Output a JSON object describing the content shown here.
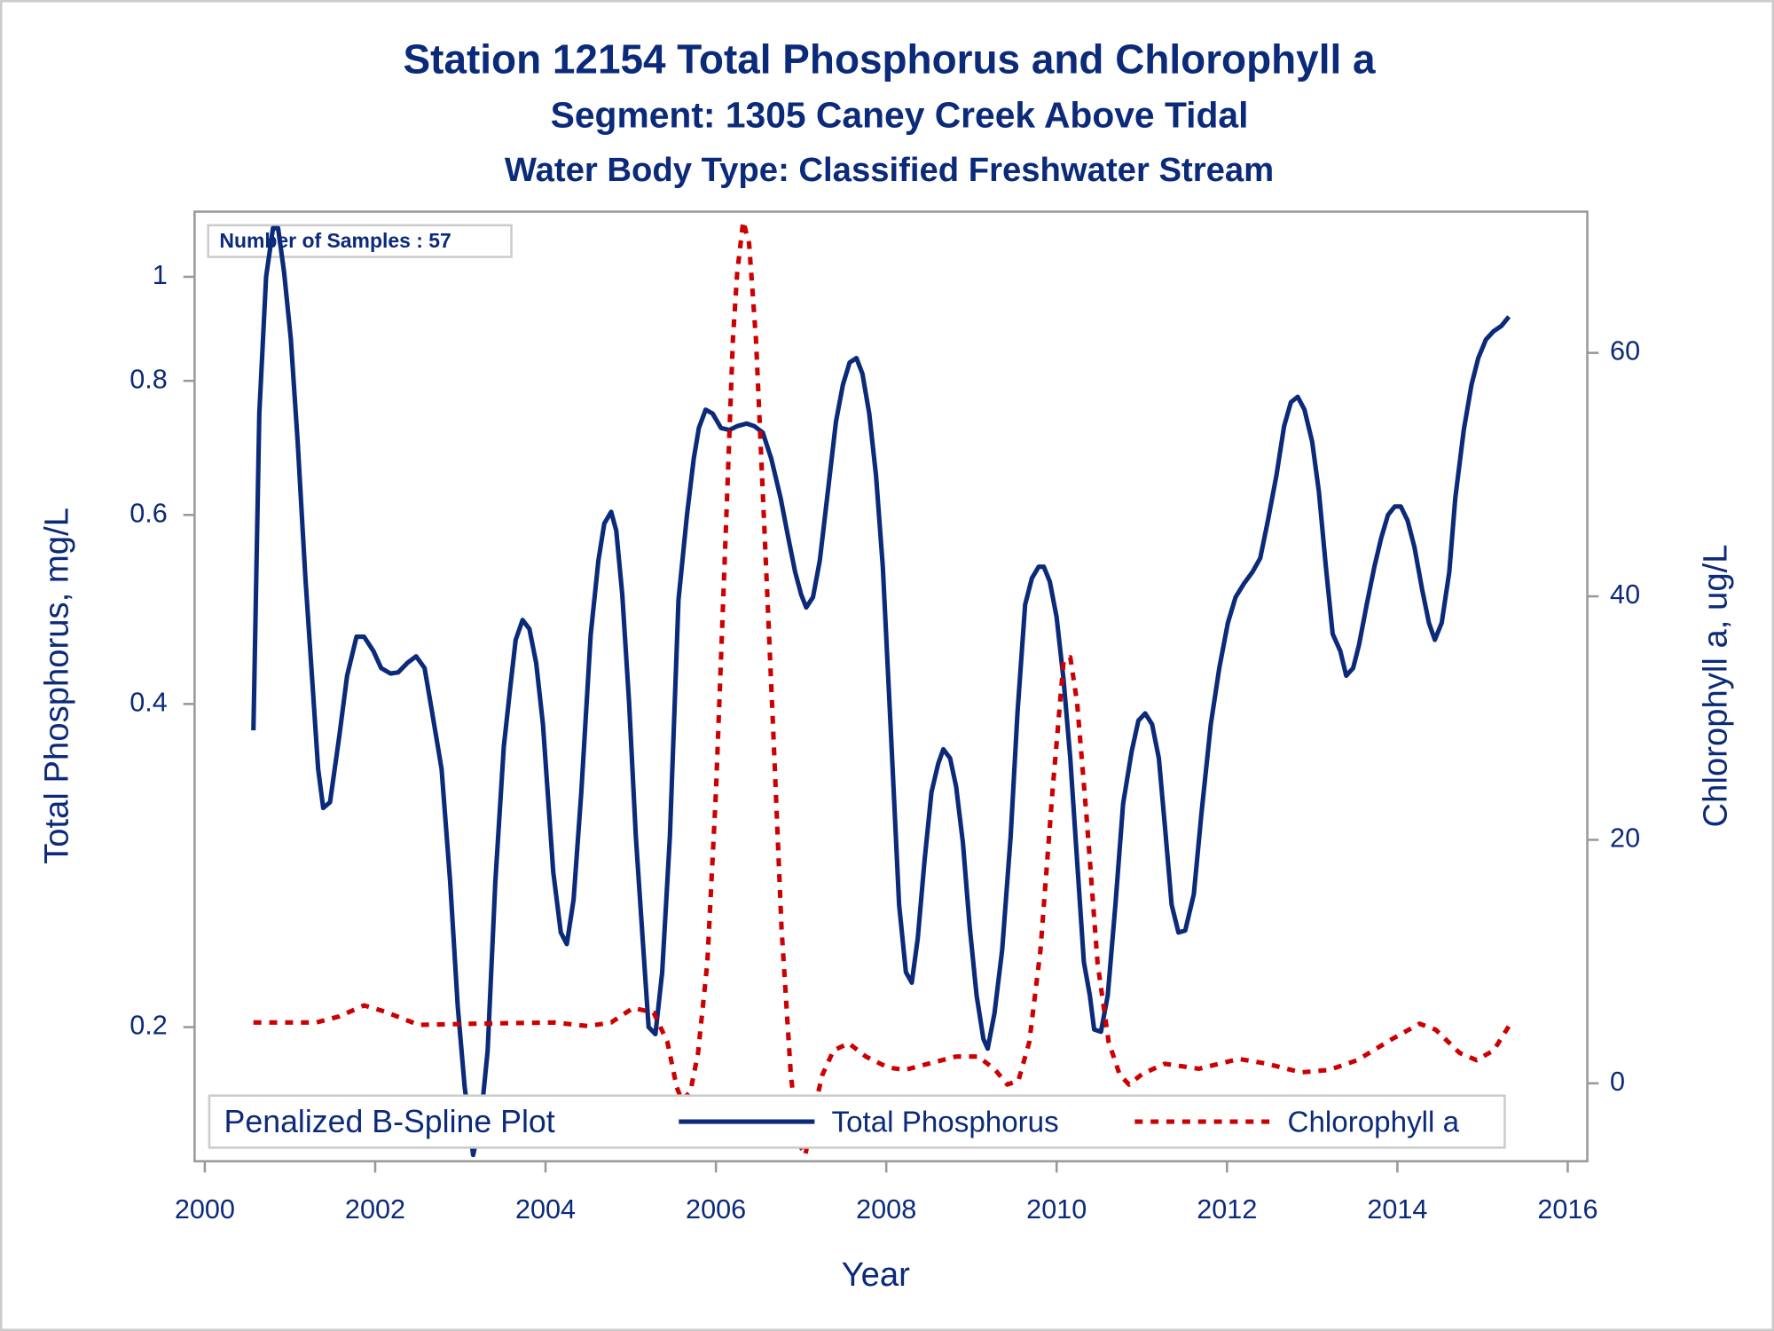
{
  "chart_data": {
    "type": "line",
    "title": "Station 12154  Total Phosphorus and Chlorophyll a",
    "subtitle": "Segment: 1305  Caney Creek Above Tidal",
    "subtitle2": "Water Body Type: Classified Freshwater Stream",
    "annotation": "Number of Samples : 57",
    "legend_title": "Penalized B-Spline Plot",
    "xlabel": "Year",
    "ylabel": "Total Phosphorus, mg/L",
    "y2label": "Chlorophyll a, ug/L",
    "xlim": [
      1999.88,
      2016.23
    ],
    "xticks": [
      2000,
      2002,
      2004,
      2006,
      2008,
      2010,
      2012,
      2014,
      2016
    ],
    "ylim": [
      0.15,
      1.15
    ],
    "yscale": "log",
    "yticks": [
      0.2,
      0.4,
      0.6,
      0.8,
      1
    ],
    "y2lim": [
      -6.4,
      71.6
    ],
    "y2ticks": [
      0,
      20,
      40,
      60
    ],
    "legend": "bottom",
    "series": [
      {
        "name": "Total Phosphorus",
        "color": "#0b2a7a",
        "style": "solid",
        "axis": "y",
        "x": [
          2000.57,
          2000.64,
          2000.72,
          2000.8,
          2000.86,
          2000.93,
          2001.01,
          2001.09,
          2001.18,
          2001.26,
          2001.33,
          2001.39,
          2001.47,
          2001.58,
          2001.67,
          2001.78,
          2001.87,
          2001.98,
          2002.07,
          2002.18,
          2002.27,
          2002.38,
          2002.48,
          2002.58,
          2002.67,
          2002.78,
          2002.88,
          2002.97,
          2003.05,
          2003.15,
          2003.24,
          2003.32,
          2003.41,
          2003.51,
          2003.59,
          2003.65,
          2003.73,
          2003.81,
          2003.89,
          2003.97,
          2004.09,
          2004.18,
          2004.25,
          2004.33,
          2004.42,
          2004.53,
          2004.62,
          2004.69,
          2004.77,
          2004.83,
          2004.9,
          2004.98,
          2005.06,
          2005.14,
          2005.21,
          2005.29,
          2005.37,
          2005.46,
          2005.56,
          2005.66,
          2005.74,
          2005.8,
          2005.88,
          2005.96,
          2006.06,
          2006.16,
          2006.25,
          2006.36,
          2006.45,
          2006.55,
          2006.65,
          2006.76,
          2006.85,
          2006.93,
          2007.0,
          2007.06,
          2007.14,
          2007.22,
          2007.32,
          2007.41,
          2007.49,
          2007.57,
          2007.65,
          2007.72,
          2007.8,
          2007.88,
          2007.96,
          2008.05,
          2008.15,
          2008.23,
          2008.3,
          2008.37,
          2008.45,
          2008.53,
          2008.61,
          2008.67,
          2008.75,
          2008.82,
          2008.9,
          2008.98,
          2009.06,
          2009.14,
          2009.19,
          2009.27,
          2009.36,
          2009.46,
          2009.54,
          2009.63,
          2009.71,
          2009.79,
          2009.85,
          2009.92,
          2010.0,
          2010.08,
          2010.16,
          2010.24,
          2010.32,
          2010.39,
          2010.44,
          2010.52,
          2010.6,
          2010.69,
          2010.78,
          2010.88,
          2010.96,
          2011.04,
          2011.12,
          2011.2,
          2011.27,
          2011.35,
          2011.43,
          2011.51,
          2011.61,
          2011.7,
          2011.81,
          2011.91,
          2012.01,
          2012.1,
          2012.2,
          2012.3,
          2012.39,
          2012.48,
          2012.58,
          2012.67,
          2012.75,
          2012.83,
          2012.91,
          2013.0,
          2013.08,
          2013.16,
          2013.24,
          2013.33,
          2013.4,
          2013.48,
          2013.55,
          2013.64,
          2013.73,
          2013.81,
          2013.89,
          2013.97,
          2014.04,
          2014.12,
          2014.2,
          2014.29,
          2014.37,
          2014.44,
          2014.52,
          2014.61,
          2014.68,
          2014.78,
          2014.87,
          2014.95,
          2015.04,
          2015.13,
          2015.22,
          2015.31
        ],
        "values": [
          0.378,
          0.746,
          1.0,
          1.11,
          1.11,
          1.01,
          0.874,
          0.702,
          0.525,
          0.422,
          0.348,
          0.32,
          0.324,
          0.374,
          0.425,
          0.462,
          0.462,
          0.448,
          0.432,
          0.427,
          0.428,
          0.437,
          0.443,
          0.432,
          0.392,
          0.348,
          0.273,
          0.209,
          0.176,
          0.152,
          0.164,
          0.19,
          0.273,
          0.365,
          0.417,
          0.459,
          0.479,
          0.47,
          0.437,
          0.383,
          0.279,
          0.245,
          0.239,
          0.263,
          0.331,
          0.464,
          0.544,
          0.589,
          0.604,
          0.58,
          0.506,
          0.402,
          0.301,
          0.242,
          0.2,
          0.197,
          0.225,
          0.301,
          0.5,
          0.6,
          0.677,
          0.723,
          0.752,
          0.746,
          0.723,
          0.72,
          0.726,
          0.73,
          0.726,
          0.716,
          0.677,
          0.622,
          0.571,
          0.531,
          0.506,
          0.492,
          0.503,
          0.544,
          0.637,
          0.733,
          0.793,
          0.832,
          0.84,
          0.812,
          0.746,
          0.653,
          0.537,
          0.383,
          0.26,
          0.225,
          0.22,
          0.242,
          0.286,
          0.331,
          0.352,
          0.363,
          0.356,
          0.335,
          0.297,
          0.248,
          0.214,
          0.195,
          0.191,
          0.206,
          0.236,
          0.301,
          0.392,
          0.495,
          0.524,
          0.537,
          0.537,
          0.52,
          0.482,
          0.422,
          0.356,
          0.286,
          0.23,
          0.214,
          0.199,
          0.198,
          0.214,
          0.26,
          0.323,
          0.361,
          0.386,
          0.392,
          0.383,
          0.356,
          0.308,
          0.26,
          0.245,
          0.246,
          0.266,
          0.316,
          0.383,
          0.432,
          0.476,
          0.503,
          0.518,
          0.531,
          0.547,
          0.593,
          0.653,
          0.726,
          0.764,
          0.773,
          0.752,
          0.702,
          0.63,
          0.537,
          0.465,
          0.448,
          0.425,
          0.432,
          0.454,
          0.495,
          0.537,
          0.571,
          0.6,
          0.611,
          0.611,
          0.593,
          0.56,
          0.512,
          0.476,
          0.459,
          0.476,
          0.531,
          0.622,
          0.72,
          0.793,
          0.84,
          0.874,
          0.89,
          0.9,
          0.918
        ]
      },
      {
        "name": "Chlorophyll a",
        "color": "#cc0000",
        "style": "dashed",
        "axis": "y2",
        "x": [
          2000.57,
          2001.31,
          2001.58,
          2001.87,
          2002.11,
          2002.51,
          2003.17,
          2004.1,
          2004.5,
          2004.77,
          2005.03,
          2005.27,
          2005.43,
          2005.54,
          2005.6,
          2005.7,
          2005.79,
          2005.9,
          2006.0,
          2006.11,
          2006.2,
          2006.25,
          2006.32,
          2006.39,
          2006.47,
          2006.56,
          2006.67,
          2006.77,
          2006.88,
          2006.97,
          2007.05,
          2007.14,
          2007.25,
          2007.38,
          2007.56,
          2007.76,
          2008.02,
          2008.22,
          2008.49,
          2008.82,
          2009.08,
          2009.28,
          2009.42,
          2009.55,
          2009.68,
          2009.81,
          2009.95,
          2010.08,
          2010.16,
          2010.24,
          2010.35,
          2010.48,
          2010.61,
          2010.74,
          2010.85,
          2011.01,
          2011.27,
          2011.67,
          2012.14,
          2012.47,
          2012.87,
          2013.2,
          2013.53,
          2013.93,
          2014.26,
          2014.45,
          2014.73,
          2014.93,
          2015.13,
          2015.31
        ],
        "values": [
          5.0,
          5.0,
          5.5,
          6.4,
          5.9,
          4.8,
          4.9,
          5.0,
          4.7,
          5.0,
          6.2,
          5.8,
          3.4,
          -0.3,
          -1.4,
          -0.7,
          2.5,
          9.9,
          23.9,
          44.3,
          61.1,
          66.6,
          70.8,
          69.0,
          61.1,
          47.1,
          29.5,
          12.7,
          0.7,
          -4.9,
          -5.9,
          -2.6,
          0.7,
          2.7,
          3.3,
          2.2,
          1.3,
          1.1,
          1.6,
          2.2,
          2.2,
          1.1,
          -0.1,
          0.2,
          3.4,
          10.9,
          23.9,
          34.6,
          35.0,
          31.3,
          22.0,
          9.9,
          3.4,
          0.7,
          -0.1,
          0.8,
          1.6,
          1.2,
          2.0,
          1.6,
          0.9,
          1.1,
          1.9,
          3.6,
          4.9,
          4.4,
          2.5,
          1.9,
          2.7,
          4.7
        ]
      }
    ]
  }
}
